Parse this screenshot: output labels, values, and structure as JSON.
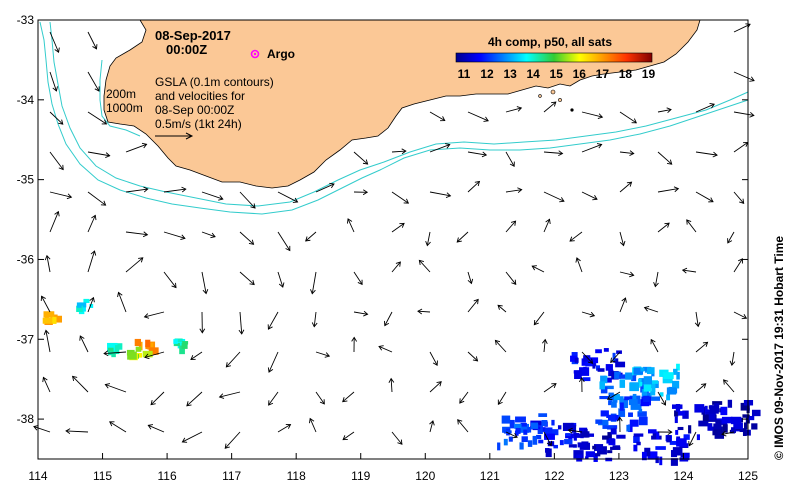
{
  "map": {
    "date": "08-Sep-2017",
    "time": "00:00Z",
    "argo_label": "Argo",
    "bathy_labels": [
      "200m",
      "1000m"
    ],
    "description_lines": [
      "GSLA (0.1m contours)",
      "and velocities for",
      "08-Sep 00:00Z",
      "0.5m/s (1kt 24h)"
    ],
    "credit": "© IMOS 09-Nov-2017 19:31 Hobart Time",
    "colors": {
      "land": "#fbc896",
      "contour": "#33cccc",
      "argo": "#ff00ff"
    }
  },
  "legend": {
    "title": "4h comp, p50, all sats",
    "ticks": [
      "11",
      "12",
      "13",
      "14",
      "15",
      "16",
      "17",
      "18",
      "19"
    ],
    "range": [
      11,
      19.5
    ]
  },
  "axes": {
    "lon_ticks": [
      "114",
      "115",
      "116",
      "117",
      "118",
      "119",
      "120",
      "121",
      "122",
      "123",
      "124",
      "125"
    ],
    "lat_ticks": [
      "-33",
      "-34",
      "-35",
      "-36",
      "-37",
      "-38"
    ],
    "lon_range": [
      114,
      125
    ],
    "lat_range": [
      -38.5,
      -33
    ]
  },
  "sst_patches": [
    {
      "lon": 115.15,
      "lat": -37.1,
      "value": 14.5
    },
    {
      "lon": 115.6,
      "lat": -37.05,
      "value": 17.5
    },
    {
      "lon": 115.5,
      "lat": -37.15,
      "value": 16.0
    },
    {
      "lon": 116.2,
      "lat": -37.05,
      "value": 14.5
    },
    {
      "lon": 114.1,
      "lat": -36.7,
      "value": 17.0
    },
    {
      "lon": 114.7,
      "lat": -36.55,
      "value": 14.0
    },
    {
      "lon": 122.6,
      "lat": -37.3,
      "value": 12.0
    },
    {
      "lon": 123.1,
      "lat": -37.6,
      "value": 13.0
    },
    {
      "lon": 123.5,
      "lat": -37.5,
      "value": 13.5
    },
    {
      "lon": 123.0,
      "lat": -37.9,
      "value": 12.5
    },
    {
      "lon": 124.2,
      "lat": -38.0,
      "value": 11.5
    },
    {
      "lon": 124.7,
      "lat": -37.95,
      "value": 11.3
    },
    {
      "lon": 122.0,
      "lat": -38.2,
      "value": 12.0
    },
    {
      "lon": 121.5,
      "lat": -38.1,
      "value": 12.5
    },
    {
      "lon": 122.6,
      "lat": -38.3,
      "value": 11.5
    },
    {
      "lon": 123.6,
      "lat": -38.3,
      "value": 11.8
    }
  ]
}
